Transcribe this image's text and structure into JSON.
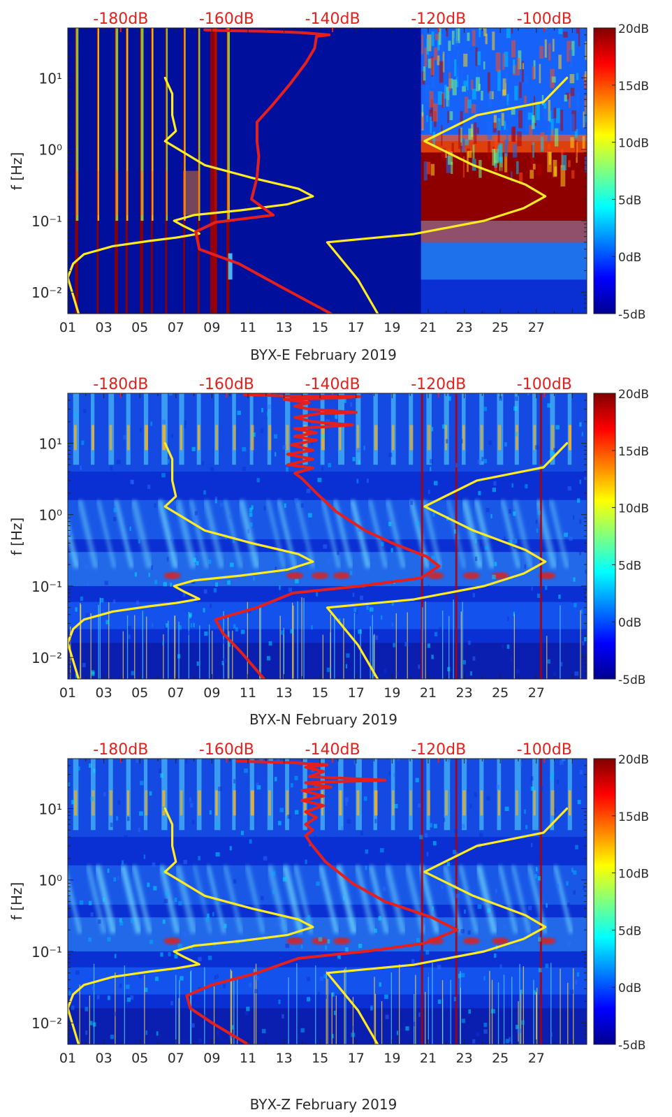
{
  "chart_data": [
    {
      "type": "heatmap",
      "station_label": "BYX-E February 2019",
      "xlabel": "BYX-E February 2019",
      "ylabel": "f [Hz]",
      "x_ticks": [
        "01",
        "03",
        "05",
        "07",
        "09",
        "11",
        "13",
        "15",
        "17",
        "19",
        "21",
        "23",
        "25",
        "27"
      ],
      "x_range_days": [
        1,
        29.8
      ],
      "y_range_hz": [
        0.005,
        50
      ],
      "y_ticks": [
        "10⁻²",
        "10⁻¹",
        "10⁰",
        "10¹"
      ],
      "top_ticks": [
        "-180dB",
        "-160dB",
        "-140dB",
        "-120dB",
        "-100dB"
      ],
      "top_range_db": [
        -190,
        -92
      ],
      "colorbar_ticks": [
        "20dB",
        "15dB",
        "10dB",
        "5dB",
        "0dB",
        "-5dB"
      ],
      "colorbar_range_db": [
        -5,
        20
      ],
      "regime": "E",
      "yellow_curve": [
        [
          1.6,
          0.005
        ],
        [
          1.3,
          0.009
        ],
        [
          1.0,
          0.016
        ],
        [
          1.3,
          0.025
        ],
        [
          1.9,
          0.034
        ],
        [
          3.5,
          0.044
        ],
        [
          5.5,
          0.052
        ],
        [
          7.0,
          0.058
        ],
        [
          8.3,
          0.066
        ],
        [
          7.4,
          0.085
        ],
        [
          6.9,
          0.1
        ],
        [
          8.0,
          0.12
        ],
        [
          10.6,
          0.14
        ],
        [
          13.2,
          0.17
        ],
        [
          14.6,
          0.22
        ],
        [
          13.8,
          0.28
        ],
        [
          11.2,
          0.4
        ],
        [
          8.6,
          0.6
        ],
        [
          6.4,
          1.3
        ],
        [
          7.0,
          1.8
        ],
        [
          6.8,
          3.0
        ],
        [
          6.8,
          6.0
        ],
        [
          6.4,
          10
        ]
      ],
      "yellow_curve2": [
        [
          18.2,
          0.005
        ],
        [
          17.1,
          0.015
        ],
        [
          15.4,
          0.05
        ],
        [
          20.2,
          0.065
        ],
        [
          24.1,
          0.1
        ],
        [
          26.3,
          0.15
        ],
        [
          27.5,
          0.22
        ],
        [
          26.4,
          0.32
        ],
        [
          23.5,
          0.6
        ],
        [
          20.8,
          1.3
        ],
        [
          23.7,
          3.0
        ],
        [
          27.4,
          4.6
        ],
        [
          28.7,
          10
        ]
      ],
      "red_curve": [
        [
          15.6,
          0.005
        ],
        [
          12.8,
          0.012
        ],
        [
          10.5,
          0.025
        ],
        [
          8.3,
          0.04
        ],
        [
          8.1,
          0.07
        ],
        [
          9.2,
          0.095
        ],
        [
          12.4,
          0.12
        ],
        [
          11.2,
          0.2
        ],
        [
          11.5,
          0.4
        ],
        [
          11.6,
          0.8
        ],
        [
          11.5,
          1.3
        ],
        [
          11.5,
          2.4
        ],
        [
          12.3,
          4.0
        ],
        [
          13.3,
          8.0
        ],
        [
          14.2,
          16
        ],
        [
          14.7,
          26
        ],
        [
          14.8,
          38
        ],
        [
          15.5,
          40
        ],
        [
          14.0,
          43
        ],
        [
          12.0,
          45
        ],
        [
          9.5,
          46
        ],
        [
          8.6,
          47
        ]
      ]
    },
    {
      "type": "heatmap",
      "station_label": "BYX-N February 2019",
      "xlabel": "BYX-N February 2019",
      "ylabel": "f [Hz]",
      "x_ticks": [
        "01",
        "03",
        "05",
        "07",
        "09",
        "11",
        "13",
        "15",
        "17",
        "19",
        "21",
        "23",
        "25",
        "27"
      ],
      "x_range_days": [
        1,
        29.8
      ],
      "y_range_hz": [
        0.005,
        50
      ],
      "y_ticks": [
        "10⁻²",
        "10⁻¹",
        "10⁰",
        "10¹"
      ],
      "top_ticks": [
        "-180dB",
        "-160dB",
        "-140dB",
        "-120dB",
        "-100dB"
      ],
      "top_range_db": [
        -190,
        -92
      ],
      "colorbar_ticks": [
        "20dB",
        "15dB",
        "10dB",
        "5dB",
        "0dB",
        "-5dB"
      ],
      "colorbar_range_db": [
        -5,
        20
      ],
      "regime": "NZ",
      "yellow_curve": [
        [
          1.6,
          0.005
        ],
        [
          1.3,
          0.009
        ],
        [
          1.0,
          0.016
        ],
        [
          1.3,
          0.025
        ],
        [
          1.9,
          0.034
        ],
        [
          3.5,
          0.044
        ],
        [
          5.5,
          0.052
        ],
        [
          7.0,
          0.058
        ],
        [
          8.3,
          0.066
        ],
        [
          7.4,
          0.085
        ],
        [
          6.9,
          0.1
        ],
        [
          8.0,
          0.12
        ],
        [
          10.6,
          0.14
        ],
        [
          13.2,
          0.17
        ],
        [
          14.6,
          0.22
        ],
        [
          13.8,
          0.28
        ],
        [
          11.2,
          0.4
        ],
        [
          8.6,
          0.6
        ],
        [
          6.4,
          1.3
        ],
        [
          7.0,
          1.8
        ],
        [
          6.8,
          3.0
        ],
        [
          6.8,
          6.0
        ],
        [
          6.4,
          10
        ]
      ],
      "yellow_curve2": [
        [
          18.2,
          0.005
        ],
        [
          17.1,
          0.015
        ],
        [
          15.4,
          0.05
        ],
        [
          20.2,
          0.065
        ],
        [
          24.1,
          0.1
        ],
        [
          26.3,
          0.15
        ],
        [
          27.5,
          0.22
        ],
        [
          26.4,
          0.32
        ],
        [
          23.5,
          0.6
        ],
        [
          20.8,
          1.3
        ],
        [
          23.7,
          3.0
        ],
        [
          27.4,
          4.6
        ],
        [
          28.7,
          10
        ]
      ],
      "red_curve": [
        [
          11.9,
          0.005
        ],
        [
          10.6,
          0.012
        ],
        [
          9.6,
          0.022
        ],
        [
          9.2,
          0.034
        ],
        [
          11.5,
          0.05
        ],
        [
          13.5,
          0.08
        ],
        [
          17.2,
          0.1
        ],
        [
          20.6,
          0.13
        ],
        [
          21.6,
          0.19
        ],
        [
          20.9,
          0.26
        ],
        [
          19.0,
          0.4
        ],
        [
          17.5,
          0.6
        ],
        [
          15.9,
          1.1
        ],
        [
          14.8,
          2.0
        ],
        [
          14.0,
          3.2
        ],
        [
          13.6,
          3.8
        ],
        [
          14.6,
          4.5
        ],
        [
          13.2,
          5
        ],
        [
          14.6,
          6
        ],
        [
          13.2,
          7
        ],
        [
          14.6,
          8
        ],
        [
          13.4,
          9.5
        ],
        [
          14.8,
          11
        ],
        [
          13.6,
          12.5
        ],
        [
          14.8,
          14
        ],
        [
          13.6,
          16
        ],
        [
          16.8,
          18
        ],
        [
          14.6,
          20
        ],
        [
          13.6,
          23
        ],
        [
          15.0,
          26
        ],
        [
          17.0,
          27
        ],
        [
          14.4,
          30
        ],
        [
          13.6,
          33
        ],
        [
          14.4,
          37
        ],
        [
          13.0,
          41
        ],
        [
          16.0,
          43
        ],
        [
          17.2,
          45
        ],
        [
          13.0,
          46
        ],
        [
          10.8,
          48
        ]
      ]
    },
    {
      "type": "heatmap",
      "station_label": "BYX-Z February 2019",
      "xlabel": "BYX-Z February 2019",
      "ylabel": "f [Hz]",
      "x_ticks": [
        "01",
        "03",
        "05",
        "07",
        "09",
        "11",
        "13",
        "15",
        "17",
        "19",
        "21",
        "23",
        "25",
        "27"
      ],
      "x_range_days": [
        1,
        29.8
      ],
      "y_range_hz": [
        0.005,
        50
      ],
      "y_ticks": [
        "10⁻²",
        "10⁻¹",
        "10⁰",
        "10¹"
      ],
      "top_ticks": [
        "-180dB",
        "-160dB",
        "-140dB",
        "-120dB",
        "-100dB"
      ],
      "top_range_db": [
        -190,
        -92
      ],
      "colorbar_ticks": [
        "20dB",
        "15dB",
        "10dB",
        "5dB",
        "0dB",
        "-5dB"
      ],
      "colorbar_range_db": [
        -5,
        20
      ],
      "regime": "NZ",
      "yellow_curve": [
        [
          1.6,
          0.005
        ],
        [
          1.3,
          0.009
        ],
        [
          1.0,
          0.016
        ],
        [
          1.3,
          0.025
        ],
        [
          1.9,
          0.034
        ],
        [
          3.5,
          0.044
        ],
        [
          5.5,
          0.052
        ],
        [
          7.0,
          0.058
        ],
        [
          8.3,
          0.066
        ],
        [
          7.4,
          0.085
        ],
        [
          6.9,
          0.1
        ],
        [
          8.0,
          0.12
        ],
        [
          10.6,
          0.14
        ],
        [
          13.2,
          0.17
        ],
        [
          14.6,
          0.22
        ],
        [
          13.8,
          0.28
        ],
        [
          11.2,
          0.4
        ],
        [
          8.6,
          0.6
        ],
        [
          6.4,
          1.3
        ],
        [
          7.0,
          1.8
        ],
        [
          6.8,
          3.0
        ],
        [
          6.8,
          6.0
        ],
        [
          6.4,
          10
        ]
      ],
      "yellow_curve2": [
        [
          18.2,
          0.005
        ],
        [
          17.1,
          0.015
        ],
        [
          15.4,
          0.05
        ],
        [
          20.2,
          0.065
        ],
        [
          24.1,
          0.1
        ],
        [
          26.3,
          0.15
        ],
        [
          27.5,
          0.22
        ],
        [
          26.4,
          0.32
        ],
        [
          23.5,
          0.6
        ],
        [
          20.8,
          1.3
        ],
        [
          23.7,
          3.0
        ],
        [
          27.4,
          4.6
        ],
        [
          28.7,
          10
        ]
      ],
      "red_curve": [
        [
          11.0,
          0.005
        ],
        [
          9.0,
          0.01
        ],
        [
          7.8,
          0.016
        ],
        [
          7.6,
          0.024
        ],
        [
          9.0,
          0.034
        ],
        [
          11.5,
          0.05
        ],
        [
          13.8,
          0.08
        ],
        [
          17.5,
          0.1
        ],
        [
          20.8,
          0.13
        ],
        [
          22.6,
          0.2
        ],
        [
          21.2,
          0.3
        ],
        [
          18.6,
          0.5
        ],
        [
          16.8,
          0.9
        ],
        [
          15.3,
          1.8
        ],
        [
          14.5,
          3.2
        ],
        [
          14.2,
          4.2
        ],
        [
          14.6,
          5
        ],
        [
          14.2,
          6
        ],
        [
          14.8,
          7.5
        ],
        [
          14.2,
          9
        ],
        [
          15.2,
          11
        ],
        [
          14.0,
          13
        ],
        [
          15.2,
          15
        ],
        [
          14.0,
          18
        ],
        [
          15.6,
          20
        ],
        [
          14.2,
          23
        ],
        [
          18.6,
          25
        ],
        [
          14.4,
          28
        ],
        [
          15.2,
          33
        ],
        [
          14.2,
          38
        ],
        [
          15.4,
          41
        ],
        [
          13.4,
          44
        ],
        [
          10.4,
          46
        ]
      ]
    }
  ]
}
